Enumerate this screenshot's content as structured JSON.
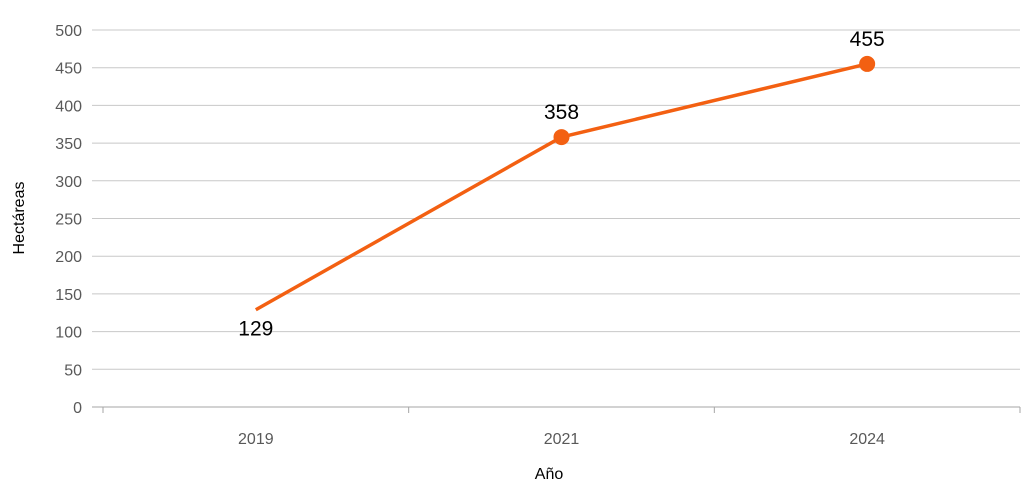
{
  "chart_data": {
    "type": "line",
    "title": "",
    "xlabel": "Año",
    "ylabel": "Hectáreas",
    "categories": [
      "2019",
      "2021",
      "2024"
    ],
    "series": [
      {
        "values": [
          129,
          358,
          455
        ],
        "color": "#f36012"
      }
    ],
    "data_labels": [
      "129",
      "358",
      "455"
    ],
    "yticks": [
      "0",
      "50",
      "100",
      "150",
      "200",
      "250",
      "300",
      "350",
      "400",
      "450",
      "500"
    ],
    "ylim": [
      0,
      500
    ],
    "grid": true,
    "markers": [
      false,
      true,
      true
    ]
  }
}
